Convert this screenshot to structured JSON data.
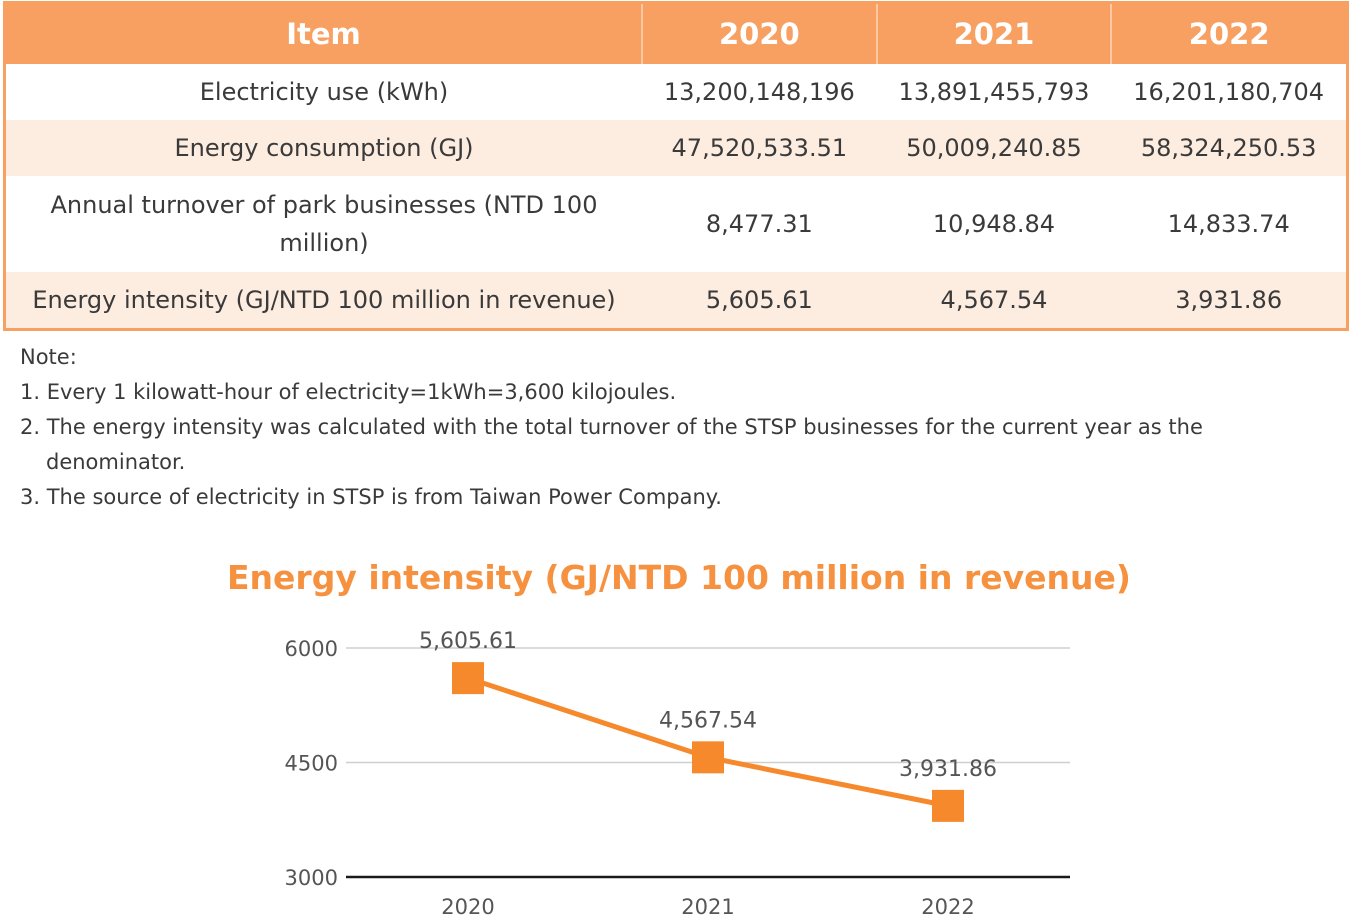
{
  "table": {
    "headers": [
      "Item",
      "2020",
      "2021",
      "2022"
    ],
    "rows": [
      [
        "Electricity use (kWh)",
        "13,200,148,196",
        "13,891,455,793",
        "16,201,180,704"
      ],
      [
        "Energy consumption (GJ)",
        "47,520,533.51",
        "50,009,240.85",
        "58,324,250.53"
      ],
      [
        "Annual turnover of park businesses (NTD 100 million)",
        "8,477.31",
        "10,948.84",
        "14,833.74"
      ],
      [
        "Energy intensity (GJ/NTD 100 million in revenue)",
        "5,605.61",
        "4,567.54",
        "3,931.86"
      ]
    ]
  },
  "notes": {
    "heading": "Note:",
    "items": [
      "1. Every 1 kilowatt-hour of electricity=1kWh=3,600 kilojoules.",
      "2. The energy intensity was calculated with the total turnover of the STSP businesses for the current year as the denominator.",
      "3. The source of electricity in STSP is from Taiwan Power Company."
    ]
  },
  "chart_data": {
    "type": "line",
    "title": "Energy intensity (GJ/NTD 100 million in revenue)",
    "categories": [
      "2020",
      "2021",
      "2022"
    ],
    "values": [
      5605.61,
      4567.54,
      3931.86
    ],
    "data_labels": [
      "5,605.61",
      "4,567.54",
      "3,931.86"
    ],
    "yticks": [
      3000,
      4500,
      6000
    ],
    "ylim": [
      3000,
      6000
    ],
    "grid": true,
    "line_color": "#f5892c",
    "marker": "square"
  },
  "colors": {
    "header_bg": "#f7a062",
    "stripe_bg": "#fdece0",
    "title_color": "#f5913f",
    "accent": "#f5892c"
  }
}
